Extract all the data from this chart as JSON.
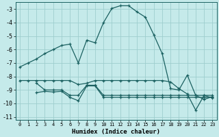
{
  "xlabel": "Humidex (Indice chaleur)",
  "background_color": "#c5eaea",
  "grid_color": "#9ecece",
  "line_color": "#1a6060",
  "xlim": [
    -0.5,
    23.5
  ],
  "ylim": [
    -11.2,
    -2.5
  ],
  "yticks": [
    -11,
    -10,
    -9,
    -8,
    -7,
    -6,
    -5,
    -4,
    -3
  ],
  "xticks": [
    0,
    1,
    2,
    3,
    4,
    5,
    6,
    7,
    8,
    9,
    10,
    11,
    12,
    13,
    14,
    15,
    16,
    17,
    18,
    19,
    20,
    21,
    22,
    23
  ],
  "s1x": [
    0,
    1,
    2,
    3,
    4,
    5,
    6,
    7,
    8,
    9,
    10,
    11,
    12,
    13,
    14,
    15,
    16,
    17,
    18,
    19,
    20,
    21,
    22,
    23
  ],
  "s1y": [
    -7.3,
    -7.0,
    -6.7,
    -6.3,
    -6.0,
    -5.7,
    -5.6,
    -7.0,
    -5.3,
    -5.5,
    -4.0,
    -2.95,
    -2.75,
    -2.75,
    -3.2,
    -3.6,
    -4.9,
    -6.3,
    -8.9,
    -9.0,
    -7.9,
    -9.4,
    -9.7,
    -9.5
  ],
  "s2x": [
    0,
    1,
    2,
    3,
    4,
    5,
    6,
    7,
    8,
    9,
    10,
    11,
    12,
    13,
    14,
    15,
    16,
    17,
    18,
    19,
    20,
    21,
    22,
    23
  ],
  "s2y": [
    -8.3,
    -8.3,
    -8.3,
    -8.3,
    -8.3,
    -8.3,
    -8.3,
    -8.6,
    -8.5,
    -8.3,
    -8.3,
    -8.3,
    -8.3,
    -8.3,
    -8.3,
    -8.3,
    -8.3,
    -8.3,
    -8.4,
    -8.9,
    -9.3,
    -10.5,
    -9.4,
    -9.6
  ],
  "s3x": [
    2,
    3,
    4,
    5,
    6,
    7,
    8,
    9,
    10,
    11,
    12,
    13,
    14,
    15,
    16,
    17,
    18,
    19,
    20,
    21,
    22,
    23
  ],
  "s3y": [
    -8.5,
    -9.0,
    -9.0,
    -9.0,
    -9.4,
    -9.4,
    -8.65,
    -8.65,
    -9.4,
    -9.4,
    -9.4,
    -9.4,
    -9.4,
    -9.4,
    -9.4,
    -9.4,
    -9.4,
    -9.4,
    -9.4,
    -9.4,
    -9.4,
    -9.4
  ],
  "s4x": [
    2,
    3,
    4,
    5,
    6,
    7,
    8,
    9,
    10,
    11,
    12,
    13,
    14,
    15,
    16,
    17,
    18,
    19,
    20,
    21,
    22,
    23
  ],
  "s4y": [
    -9.2,
    -9.1,
    -9.15,
    -9.1,
    -9.55,
    -9.8,
    -8.7,
    -8.7,
    -9.55,
    -9.55,
    -9.55,
    -9.55,
    -9.55,
    -9.55,
    -9.55,
    -9.55,
    -9.55,
    -9.55,
    -9.55,
    -9.55,
    -9.55,
    -9.55
  ]
}
